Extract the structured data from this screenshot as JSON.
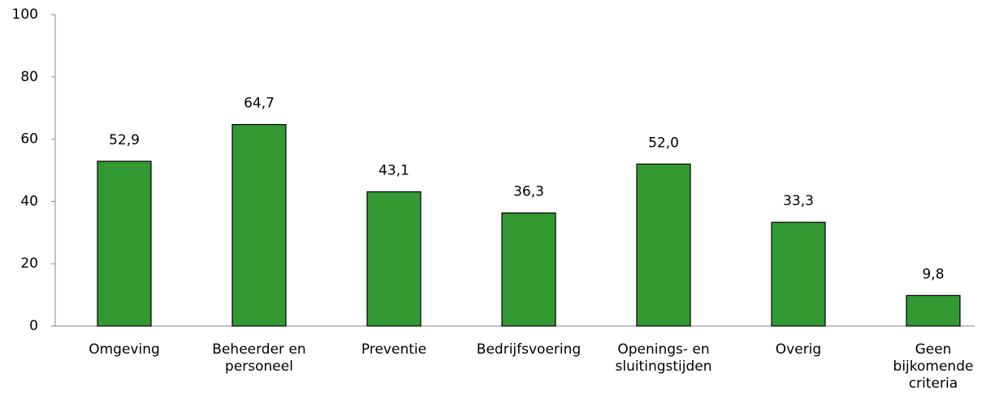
{
  "chart_data": {
    "type": "bar",
    "categories": [
      "Omgeving",
      "Beheerder en\npersoneel",
      "Preventie",
      "Bedrijfsvoering",
      "Openings- en\nsluitingstijden",
      "Overig",
      "Geen\nbijkomende\ncriteria"
    ],
    "values": [
      52.9,
      64.7,
      43.1,
      36.3,
      52.0,
      33.3,
      9.8
    ],
    "value_labels": [
      "52,9",
      "64,7",
      "43,1",
      "36,3",
      "52,0",
      "33,3",
      "9,8"
    ],
    "color": "#339933",
    "ylim": [
      0,
      100
    ],
    "yticks": [
      0,
      20,
      40,
      60,
      80,
      100
    ],
    "grid": false
  }
}
